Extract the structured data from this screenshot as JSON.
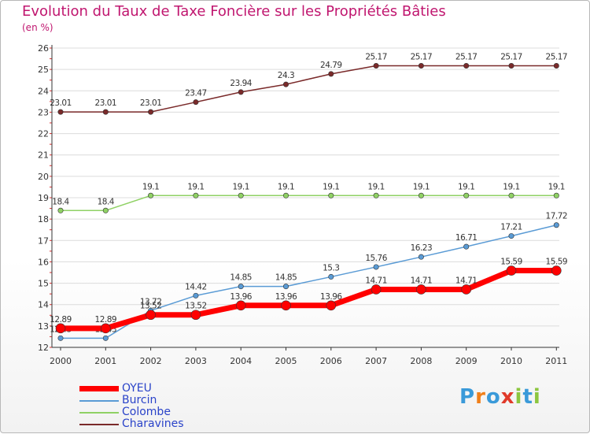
{
  "chart_data": {
    "type": "line",
    "title": "Evolution du Taux de Taxe Foncière sur les Propriétés Bâties",
    "ylabel": "(en %)",
    "xlabel": "",
    "ylim": [
      12,
      26
    ],
    "yticks": [
      "12",
      "13",
      "14",
      "15",
      "16",
      "17",
      "18",
      "19",
      "20",
      "21",
      "22",
      "23",
      "24",
      "25",
      "26"
    ],
    "categories": [
      "2000",
      "2001",
      "2002",
      "2003",
      "2004",
      "2005",
      "2006",
      "2007",
      "2008",
      "2009",
      "2010",
      "2011"
    ],
    "series": [
      {
        "name": "Charavines",
        "color": "#7a2a2a",
        "values": [
          23.01,
          23.01,
          23.01,
          23.47,
          23.94,
          24.3,
          24.79,
          25.17,
          25.17,
          25.17,
          25.17,
          25.17
        ],
        "labels": [
          "23.01",
          "23.01",
          "23.01",
          "23.47",
          "23.94",
          "24.3",
          "24.79",
          "25.17",
          "25.17",
          "25.17",
          "25.17",
          "25.17"
        ]
      },
      {
        "name": "Colombe",
        "color": "#8fd164",
        "values": [
          18.4,
          18.4,
          19.1,
          19.1,
          19.1,
          19.1,
          19.1,
          19.1,
          19.1,
          19.1,
          19.1,
          19.1
        ],
        "labels": [
          "18.4",
          "18.4",
          "19.1",
          "19.1",
          "19.1",
          "19.1",
          "19.1",
          "19.1",
          "19.1",
          "19.1",
          "19.1",
          "19.1"
        ]
      },
      {
        "name": "Burcin",
        "color": "#5a9bd5",
        "values": [
          12.43,
          12.43,
          13.72,
          14.42,
          14.85,
          14.85,
          15.3,
          15.76,
          16.23,
          16.71,
          17.21,
          17.72
        ],
        "labels": [
          "12.43",
          "12.43",
          "13.72",
          "14.42",
          "14.85",
          "14.85",
          "15.3",
          "15.76",
          "16.23",
          "16.71",
          "17.21",
          "17.72"
        ]
      },
      {
        "name": "OYEU",
        "color": "#ff0000",
        "values": [
          12.89,
          12.89,
          13.52,
          13.52,
          13.96,
          13.96,
          13.96,
          14.71,
          14.71,
          14.71,
          15.59,
          15.59
        ],
        "labels": [
          "12.89",
          "12.89",
          "13.52",
          "13.52",
          "13.96",
          "13.96",
          "13.96",
          "14.71",
          "14.71",
          "14.71",
          "15.59",
          "15.59"
        ]
      }
    ],
    "legend": [
      "OYEU",
      "Burcin",
      "Colombe",
      "Charavines"
    ],
    "legend_position": "bottom-left",
    "grid": "horizontal"
  },
  "brand": {
    "logo_letters": [
      "P",
      "r",
      "o",
      "x",
      "i",
      "t",
      "i"
    ],
    "logo_colors": [
      "#3a9ad9",
      "#f07f1a",
      "#3a9ad9",
      "#e03a2a",
      "#8cc63f",
      "#3a9ad9",
      "#8cc63f"
    ]
  }
}
